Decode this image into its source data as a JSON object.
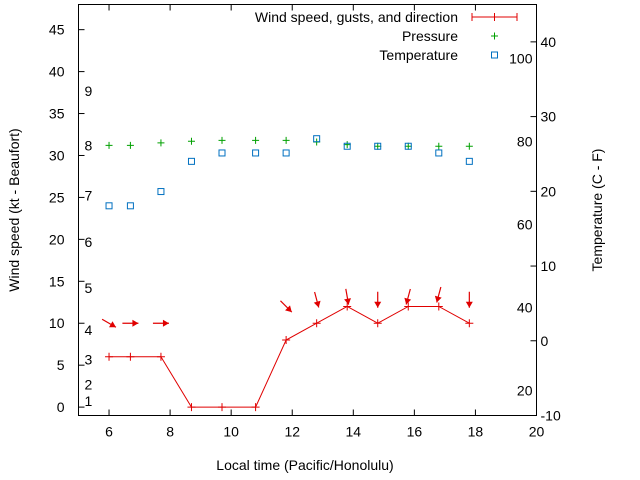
{
  "chart_data": {
    "type": "line",
    "xlabel": "Local time (Pacific/Honolulu)",
    "ylabel_left": "Wind speed (kt - Beaufort)",
    "ylabel_right": "Temperature (C - F)",
    "xlim": [
      5,
      20
    ],
    "ylim_left": [
      -1,
      48
    ],
    "ylim_right_celsius": [
      -10,
      45
    ],
    "x_ticks": [
      "6",
      "8",
      "10",
      "12",
      "14",
      "16",
      "18",
      "20"
    ],
    "y_left_ticks": [
      "0",
      "5",
      "10",
      "15",
      "20",
      "25",
      "30",
      "35",
      "40",
      "45"
    ],
    "y_right_celsius_ticks": [
      "-10",
      "0",
      "10",
      "20",
      "30",
      "40"
    ],
    "y_right_fahrenheit_ticks": [
      "20",
      "40",
      "60",
      "80",
      "100"
    ],
    "beaufort_labels": [
      "1",
      "2",
      "3",
      "4",
      "5",
      "6",
      "7",
      "8",
      "9"
    ],
    "legend": {
      "placement": "top-right",
      "entries": [
        "Wind speed, gusts, and direction",
        "Pressure",
        "Temperature"
      ]
    },
    "series": [
      {
        "name": "Wind speed, gusts, and direction",
        "color": "#e00000",
        "x": [
          6,
          6.7,
          7.7,
          8.7,
          9.7,
          10.8,
          11.8,
          12.8,
          13.8,
          14.8,
          15.8,
          16.8,
          17.8
        ],
        "values": [
          6,
          6,
          6,
          0,
          0,
          0,
          8,
          10,
          12,
          10,
          12,
          12,
          10
        ],
        "direction_deg": [
          300,
          270,
          270,
          null,
          null,
          null,
          315,
          345,
          350,
          0,
          15,
          15,
          0
        ]
      },
      {
        "name": "Pressure",
        "color": "#00a000",
        "x": [
          6,
          6.7,
          7.7,
          8.7,
          9.7,
          10.8,
          11.8,
          12.8,
          13.8,
          14.8,
          15.8,
          16.8,
          17.8
        ],
        "values": [
          31.2,
          31.2,
          31.5,
          31.7,
          31.8,
          31.8,
          31.8,
          31.6,
          31.3,
          31.1,
          31.1,
          31.1,
          31.1
        ]
      },
      {
        "name": "Temperature",
        "color": "#0070c0",
        "x": [
          6,
          6.7,
          7.7,
          8.7,
          9.7,
          10.8,
          11.8,
          12.8,
          13.8,
          14.8,
          15.8,
          16.8,
          17.8
        ],
        "values": [
          24,
          24,
          25.7,
          29.3,
          30.3,
          30.3,
          30.3,
          32,
          31.1,
          31.1,
          31.1,
          30.3,
          29.3
        ]
      }
    ]
  }
}
